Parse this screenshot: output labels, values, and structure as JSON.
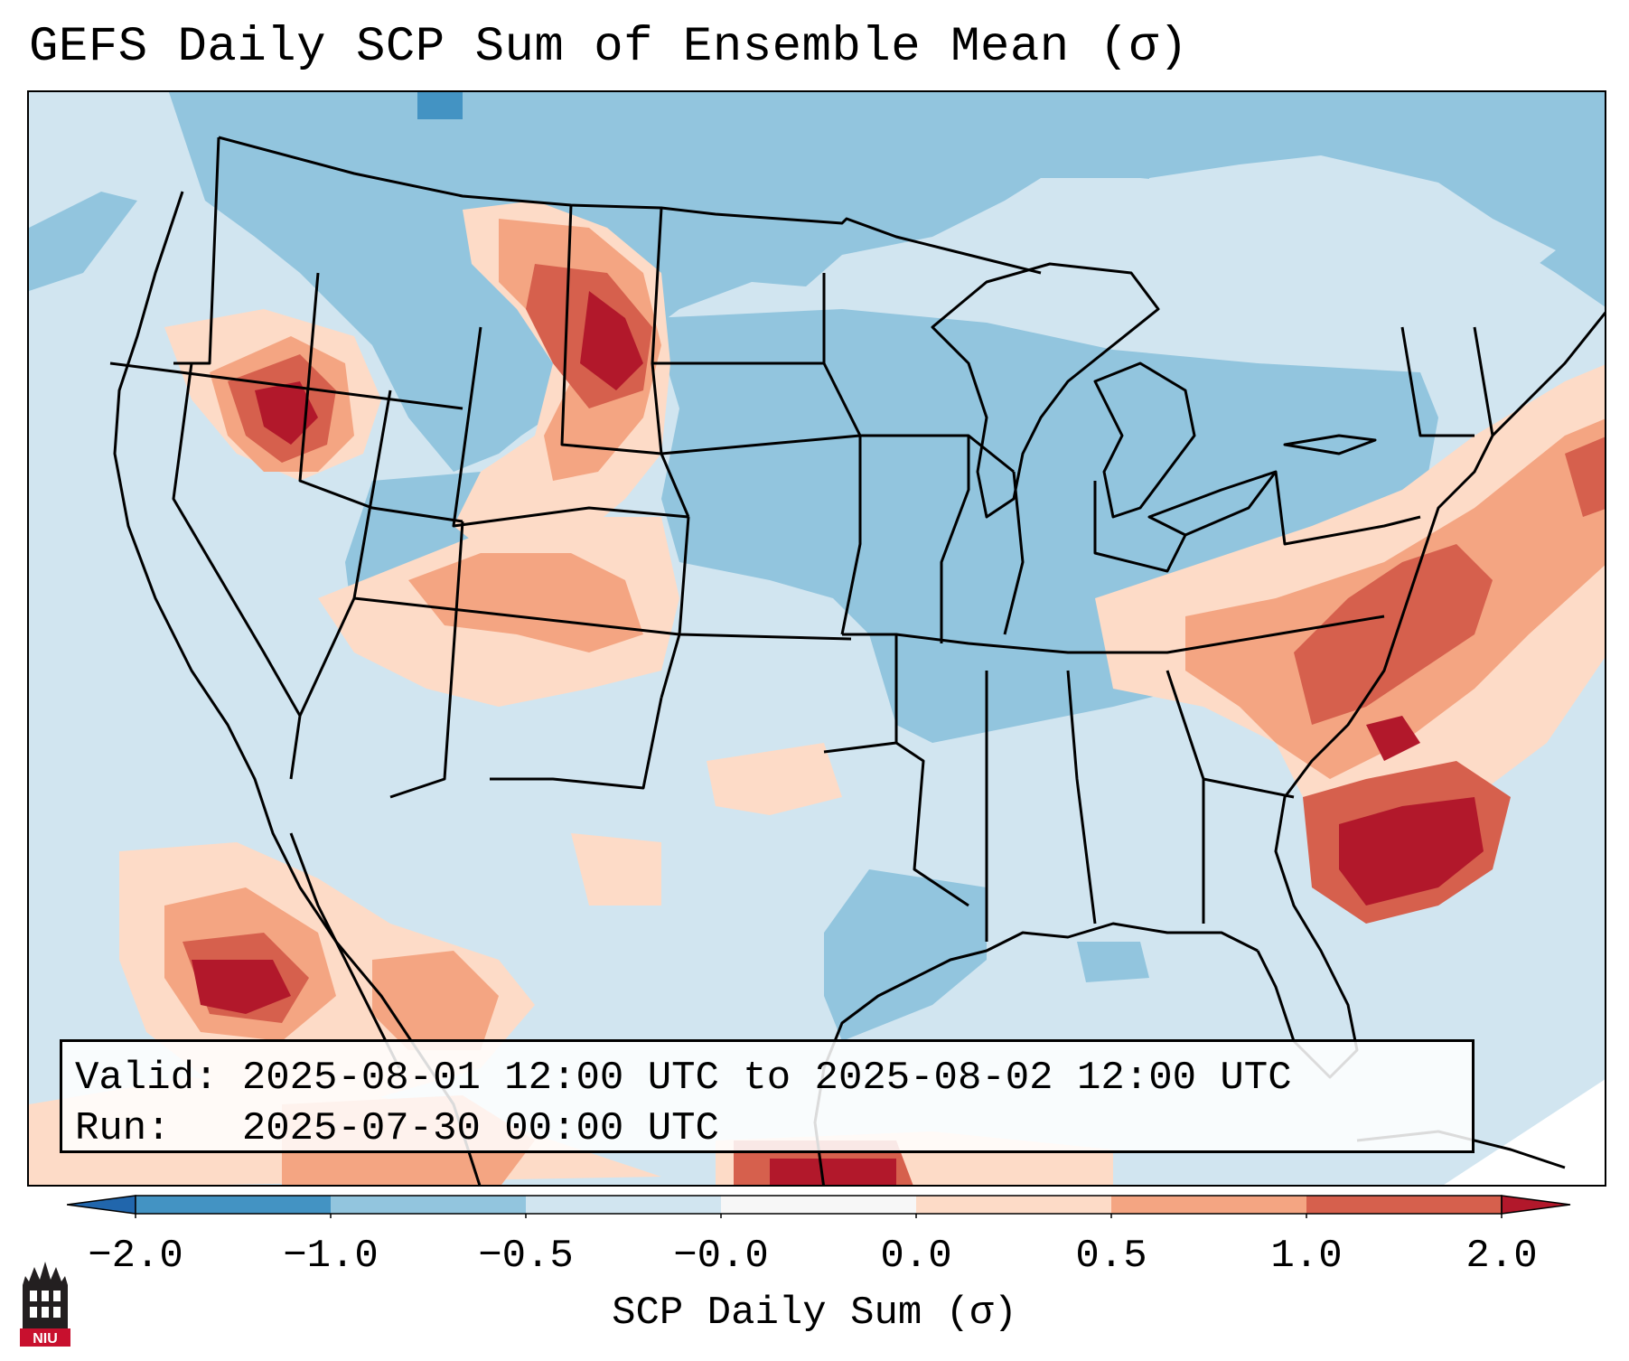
{
  "title": "GEFS Daily SCP Sum of Ensemble Mean (σ)",
  "info_box": {
    "valid_line": "Valid: 2025-08-01 12:00 UTC to 2025-08-02 12:00 UTC",
    "run_line": "Run:   2025-07-30 00:00 UTC"
  },
  "colorbar": {
    "label": "SCP Daily Sum (σ)",
    "ticks": [
      "−2.0",
      "−1.0",
      "−0.5",
      "−0.0",
      "0.0",
      "0.5",
      "1.0",
      "2.0"
    ],
    "bins": [
      {
        "range": "< -2.0",
        "color": "#2166ac"
      },
      {
        "range": "-2.0 to -1.0",
        "color": "#4393c3"
      },
      {
        "range": "-1.0 to -0.5",
        "color": "#92c5de"
      },
      {
        "range": "-0.5 to -0.0",
        "color": "#d1e5f0"
      },
      {
        "range": "0.0 to 0.0",
        "color": "#f7f7f7"
      },
      {
        "range": "0.0 to 0.5",
        "color": "#fddbc7"
      },
      {
        "range": "0.5 to 1.0",
        "color": "#f4a582"
      },
      {
        "range": "1.0 to 2.0",
        "color": "#d6604d"
      },
      {
        "range": "> 2.0",
        "color": "#b2182b"
      }
    ]
  },
  "logo": {
    "text": "NIU",
    "colors": {
      "dark": "#231f20",
      "red": "#c8102e"
    }
  }
}
